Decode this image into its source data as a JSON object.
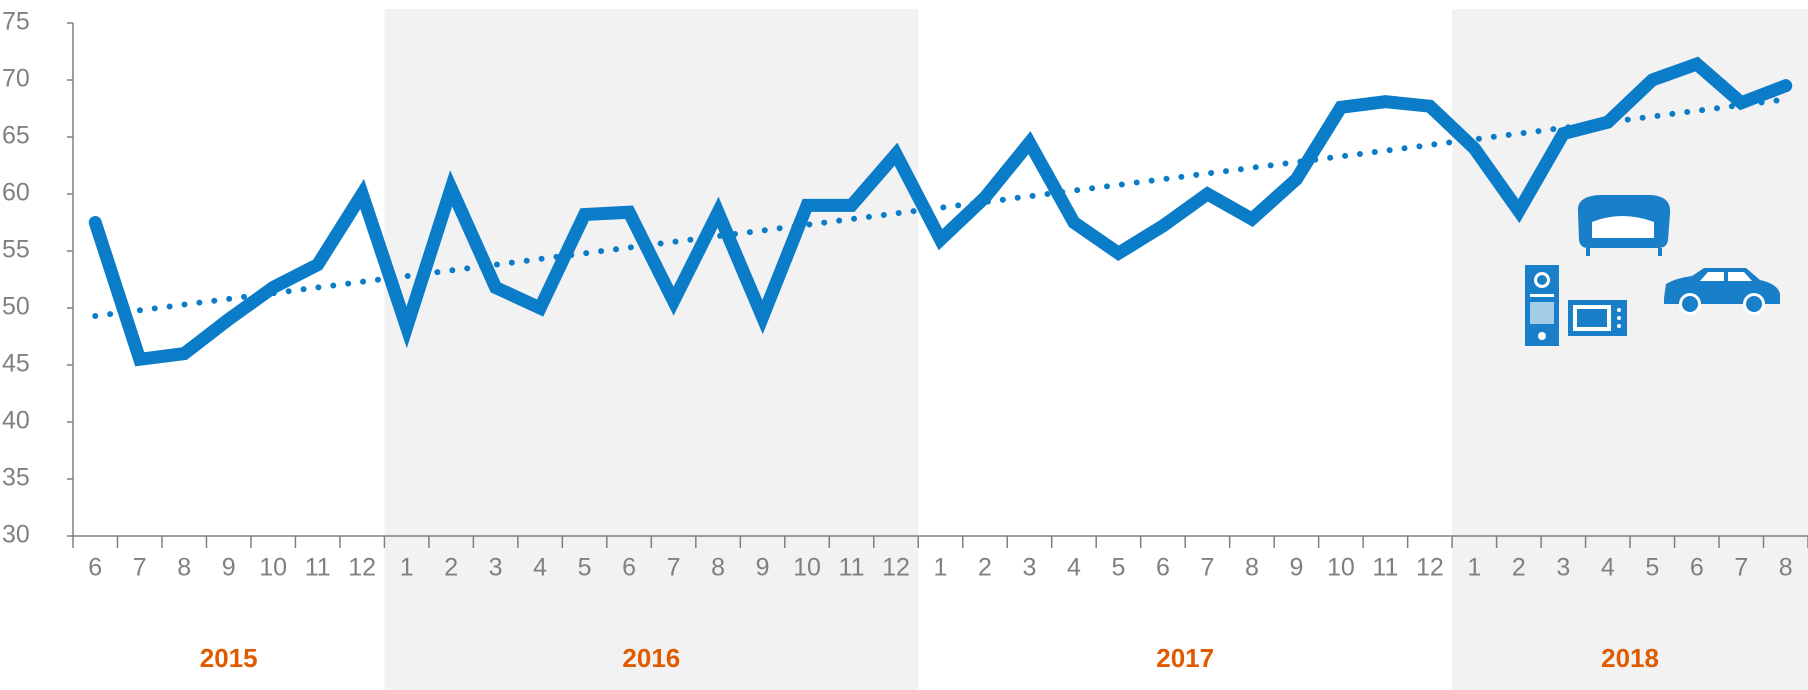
{
  "chart_data": {
    "type": "line",
    "categories": [
      "6",
      "7",
      "8",
      "9",
      "10",
      "11",
      "12",
      "1",
      "2",
      "3",
      "4",
      "5",
      "6",
      "7",
      "8",
      "9",
      "10",
      "11",
      "12",
      "1",
      "2",
      "3",
      "4",
      "5",
      "6",
      "7",
      "8",
      "9",
      "10",
      "11",
      "12",
      "1",
      "2",
      "3",
      "4",
      "5",
      "6",
      "7",
      "8"
    ],
    "years": [
      "2015",
      "2016",
      "2017",
      "2018"
    ],
    "shaded_years": [
      false,
      true,
      false,
      true
    ],
    "series": [
      {
        "color": "#0a7cc8",
        "values": [
          57.5,
          45.5,
          46,
          49,
          51.8,
          53.8,
          60,
          48.3,
          60.5,
          51.8,
          50,
          58.2,
          58.4,
          50.6,
          58.4,
          49.2,
          59,
          59,
          63.5,
          56,
          59.7,
          64.5,
          57.5,
          54.8,
          57.2,
          60,
          57.8,
          61.3,
          67.6,
          68.1,
          67.7,
          64,
          58.5,
          65.3,
          66.3,
          70,
          71.4,
          68,
          69.5
        ]
      }
    ],
    "trendline": {
      "start": 49.3,
      "end": 68.3,
      "style": "dotted"
    },
    "ylim": [
      30,
      75
    ],
    "yticks": [
      30,
      35,
      40,
      45,
      50,
      55,
      60,
      65,
      70,
      75
    ]
  }
}
